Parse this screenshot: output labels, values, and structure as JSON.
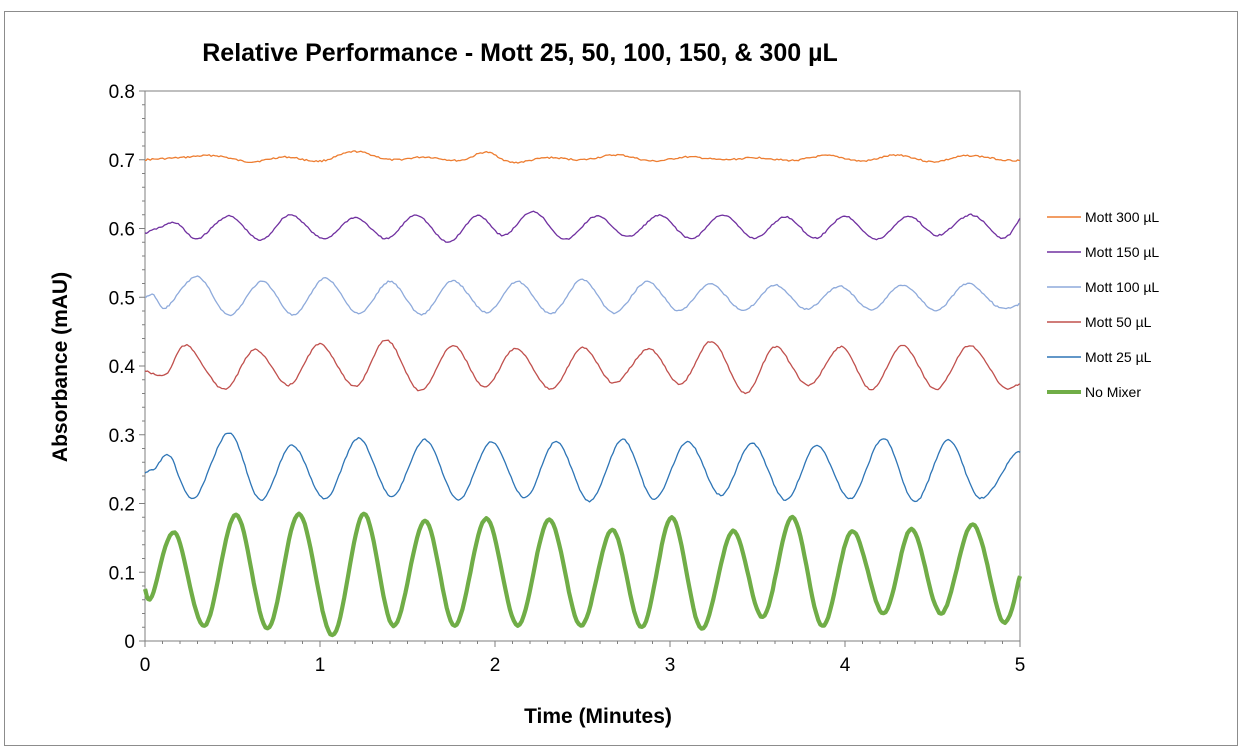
{
  "colors": {
    "mott300": "#ed7d31",
    "mott150": "#7030a0",
    "mott100": "#8eaadb",
    "mott50": "#c0504d",
    "mott25": "#2e75b6",
    "nomixer": "#70ad47",
    "axis": "#7f7f7f",
    "frame": "#8c8c8c"
  },
  "chart_data": {
    "type": "line",
    "title": "Relative Performance - Mott 25, 50, 100, 150, & 300 µL",
    "xlabel": "Time (Minutes)",
    "ylabel": "Absorbance (mAU)",
    "xlim": [
      0,
      5
    ],
    "ylim": [
      0,
      0.8
    ],
    "xticks": [
      "0",
      "1",
      "2",
      "3",
      "4",
      "5"
    ],
    "yticks": [
      "0",
      "0.1",
      "0.2",
      "0.3",
      "0.4",
      "0.5",
      "0.6",
      "0.7",
      "0.8"
    ],
    "grid": false,
    "legend_position": "right",
    "series": [
      {
        "name": "Mott 300 µL",
        "color_key": "mott300",
        "line_weight": "thin",
        "x": [
          0,
          0.2,
          0.4,
          0.6,
          0.8,
          1.0,
          1.2,
          1.4,
          1.6,
          1.8,
          1.95,
          2.1,
          2.3,
          2.5,
          2.7,
          2.9,
          3.1,
          3.3,
          3.5,
          3.7,
          3.9,
          4.1,
          4.3,
          4.5,
          4.7,
          4.9,
          5.0
        ],
        "values": [
          0.7,
          0.703,
          0.706,
          0.697,
          0.704,
          0.698,
          0.712,
          0.7,
          0.704,
          0.699,
          0.711,
          0.696,
          0.703,
          0.7,
          0.707,
          0.698,
          0.704,
          0.7,
          0.703,
          0.699,
          0.706,
          0.698,
          0.707,
          0.697,
          0.706,
          0.7,
          0.699
        ]
      },
      {
        "name": "Mott 150 µL",
        "color_key": "mott150",
        "line_weight": "thin",
        "x": [
          0,
          0.09,
          0.18,
          0.3,
          0.48,
          0.66,
          0.83,
          1.02,
          1.2,
          1.38,
          1.55,
          1.73,
          1.9,
          2.05,
          2.22,
          2.4,
          2.58,
          2.76,
          2.94,
          3.12,
          3.3,
          3.48,
          3.66,
          3.83,
          4.0,
          4.18,
          4.36,
          4.53,
          4.72,
          4.9,
          5.0
        ],
        "values": [
          0.593,
          0.602,
          0.608,
          0.585,
          0.618,
          0.583,
          0.62,
          0.585,
          0.616,
          0.585,
          0.62,
          0.58,
          0.619,
          0.59,
          0.625,
          0.584,
          0.618,
          0.588,
          0.619,
          0.585,
          0.62,
          0.586,
          0.617,
          0.586,
          0.618,
          0.584,
          0.618,
          0.59,
          0.62,
          0.586,
          0.615
        ]
      },
      {
        "name": "Mott 100 µL",
        "color_key": "mott100",
        "line_weight": "thin",
        "x": [
          0,
          0.05,
          0.12,
          0.3,
          0.48,
          0.67,
          0.85,
          1.03,
          1.22,
          1.4,
          1.58,
          1.76,
          1.95,
          2.13,
          2.32,
          2.5,
          2.68,
          2.87,
          3.05,
          3.23,
          3.42,
          3.6,
          3.78,
          3.97,
          4.15,
          4.33,
          4.52,
          4.7,
          4.88,
          5.0
        ],
        "values": [
          0.5,
          0.503,
          0.485,
          0.53,
          0.474,
          0.523,
          0.474,
          0.528,
          0.476,
          0.523,
          0.475,
          0.524,
          0.478,
          0.523,
          0.476,
          0.526,
          0.477,
          0.523,
          0.48,
          0.519,
          0.481,
          0.518,
          0.483,
          0.516,
          0.482,
          0.518,
          0.481,
          0.52,
          0.485,
          0.49
        ]
      },
      {
        "name": "Mott 50 µL",
        "color_key": "mott50",
        "line_weight": "thin",
        "x": [
          0,
          0.12,
          0.24,
          0.45,
          0.63,
          0.82,
          1.0,
          1.2,
          1.38,
          1.57,
          1.76,
          1.94,
          2.12,
          2.32,
          2.5,
          2.68,
          2.88,
          3.06,
          3.24,
          3.43,
          3.6,
          3.79,
          3.98,
          4.15,
          4.33,
          4.52,
          4.71,
          4.9,
          5.0
        ],
        "values": [
          0.393,
          0.388,
          0.43,
          0.366,
          0.424,
          0.372,
          0.432,
          0.37,
          0.438,
          0.364,
          0.43,
          0.369,
          0.426,
          0.366,
          0.427,
          0.375,
          0.425,
          0.374,
          0.436,
          0.36,
          0.428,
          0.372,
          0.428,
          0.366,
          0.43,
          0.366,
          0.43,
          0.37,
          0.375
        ]
      },
      {
        "name": "Mott 25 µL",
        "color_key": "mott25",
        "line_weight": "thin",
        "x": [
          0,
          0.06,
          0.14,
          0.28,
          0.48,
          0.66,
          0.84,
          1.03,
          1.22,
          1.41,
          1.6,
          1.79,
          1.98,
          2.17,
          2.35,
          2.54,
          2.73,
          2.91,
          3.1,
          3.29,
          3.47,
          3.66,
          3.84,
          4.03,
          4.22,
          4.4,
          4.59,
          4.77,
          4.96,
          5.0
        ],
        "values": [
          0.245,
          0.252,
          0.27,
          0.207,
          0.303,
          0.205,
          0.285,
          0.207,
          0.295,
          0.21,
          0.293,
          0.205,
          0.29,
          0.208,
          0.29,
          0.203,
          0.293,
          0.206,
          0.29,
          0.212,
          0.288,
          0.205,
          0.285,
          0.207,
          0.295,
          0.202,
          0.292,
          0.208,
          0.27,
          0.275
        ]
      },
      {
        "name": "No Mixer",
        "color_key": "nomixer",
        "line_weight": "thick",
        "x": [
          0,
          0.04,
          0.17,
          0.34,
          0.52,
          0.7,
          0.88,
          1.07,
          1.25,
          1.42,
          1.6,
          1.77,
          1.95,
          2.13,
          2.31,
          2.49,
          2.67,
          2.84,
          3.01,
          3.18,
          3.36,
          3.53,
          3.7,
          3.87,
          4.04,
          4.22,
          4.38,
          4.55,
          4.73,
          4.9,
          5.0
        ],
        "values": [
          0.075,
          0.065,
          0.158,
          0.022,
          0.184,
          0.018,
          0.185,
          0.008,
          0.185,
          0.022,
          0.175,
          0.022,
          0.178,
          0.022,
          0.177,
          0.022,
          0.162,
          0.02,
          0.18,
          0.018,
          0.16,
          0.035,
          0.18,
          0.022,
          0.16,
          0.04,
          0.163,
          0.04,
          0.17,
          0.028,
          0.095
        ]
      }
    ]
  }
}
